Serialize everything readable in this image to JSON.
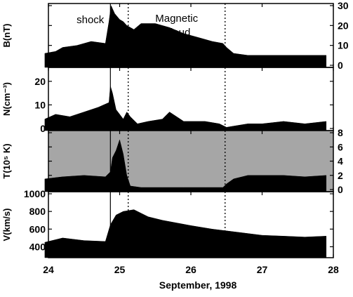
{
  "chart_data": {
    "type": "area",
    "xlabel": "September, 1998",
    "xlim": [
      24,
      28
    ],
    "x_ticks": [
      "24",
      "25",
      "26",
      "27",
      "28"
    ],
    "shock_x": 24.87,
    "cloud_boundaries": [
      25.12,
      26.48
    ],
    "annotations": {
      "shock": "shock",
      "cloud_line1": "Magnetic",
      "cloud_line2": "Cloud"
    },
    "fill_color": "#000000",
    "panels": [
      {
        "ylabel": "B(nT)",
        "ylim": [
          0,
          30
        ],
        "y_ticks": [
          {
            "v": 0,
            "label": "0"
          },
          {
            "v": 10,
            "label": "10"
          },
          {
            "v": 20,
            "label": "20"
          },
          {
            "v": 30,
            "label": "30"
          }
        ],
        "tick_side": "right",
        "show_annotations": true,
        "series": [
          {
            "x": [
              23.95,
              24.1,
              24.2,
              24.4,
              24.6,
              24.8,
              24.85,
              24.88,
              24.93,
              25.0,
              25.05,
              25.1,
              25.2,
              25.3,
              25.5,
              25.7,
              25.9,
              26.1,
              26.3,
              26.45,
              26.5,
              26.6,
              26.8,
              27.0,
              27.3,
              27.6,
              27.9
            ],
            "y": [
              6,
              7,
              9,
              10,
              12,
              11,
              22,
              30,
              26,
              23,
              22,
              20,
              18,
              21,
              21,
              19,
              16,
              14,
              12,
              11,
              9,
              6,
              5,
              5,
              5,
              5,
              5
            ]
          }
        ]
      },
      {
        "ylabel": "N(cm⁻³)",
        "ylim": [
          0,
          25
        ],
        "y_ticks": [
          {
            "v": 0,
            "label": "0"
          },
          {
            "v": 10,
            "label": "10"
          },
          {
            "v": 20,
            "label": "20"
          }
        ],
        "tick_side": "left",
        "series": [
          {
            "x": [
              23.95,
              24.1,
              24.3,
              24.5,
              24.7,
              24.85,
              24.87,
              24.9,
              24.95,
              25.0,
              25.05,
              25.1,
              25.15,
              25.25,
              25.4,
              25.6,
              25.7,
              25.8,
              25.9,
              26.0,
              26.2,
              26.4,
              26.5,
              26.6,
              26.8,
              27.0,
              27.3,
              27.6,
              27.9
            ],
            "y": [
              4,
              6,
              5,
              7,
              9,
              11,
              18,
              15,
              8,
              6,
              4,
              7,
              5,
              2,
              3,
              4,
              7,
              5,
              3,
              3,
              3,
              2,
              0.5,
              1,
              2,
              2,
              3,
              2,
              3
            ]
          }
        ]
      },
      {
        "ylabel": "T(10⁵ K)",
        "ylim": [
          0,
          8
        ],
        "y_ticks": [
          {
            "v": 0,
            "label": "0"
          },
          {
            "v": 2,
            "label": "2"
          },
          {
            "v": 4,
            "label": "4"
          },
          {
            "v": 6,
            "label": "6"
          },
          {
            "v": 8,
            "label": "8"
          }
        ],
        "tick_side": "right",
        "background": "#a6a6a6",
        "series": [
          {
            "x": [
              23.95,
              24.2,
              24.5,
              24.8,
              24.87,
              24.9,
              24.95,
              25.0,
              25.05,
              25.1,
              25.15,
              25.3,
              25.6,
              25.9,
              26.2,
              26.45,
              26.5,
              26.6,
              26.8,
              27.0,
              27.3,
              27.6,
              27.9
            ],
            "y": [
              1.5,
              1.8,
              2,
              1.8,
              2.5,
              4.5,
              5.5,
              7,
              5,
              2,
              0.5,
              0.3,
              0.3,
              0.3,
              0.3,
              0.3,
              0.8,
              1.5,
              2,
              2,
              2,
              1.8,
              2
            ]
          }
        ]
      },
      {
        "ylabel": "V(km/s)",
        "ylim": [
          300,
          1000
        ],
        "y_ticks": [
          {
            "v": 400,
            "label": "400"
          },
          {
            "v": 600,
            "label": "600"
          },
          {
            "v": 800,
            "label": "800"
          },
          {
            "v": 1000,
            "label": "1000"
          }
        ],
        "tick_side": "left",
        "series": [
          {
            "x": [
              23.95,
              24.2,
              24.5,
              24.8,
              24.87,
              24.95,
              25.05,
              25.2,
              25.4,
              25.6,
              25.8,
              26.0,
              26.3,
              26.5,
              26.7,
              27.0,
              27.3,
              27.6,
              27.9
            ],
            "y": [
              450,
              500,
              470,
              460,
              650,
              760,
              800,
              820,
              740,
              700,
              670,
              640,
              600,
              580,
              560,
              530,
              520,
              510,
              520
            ]
          }
        ]
      }
    ]
  }
}
